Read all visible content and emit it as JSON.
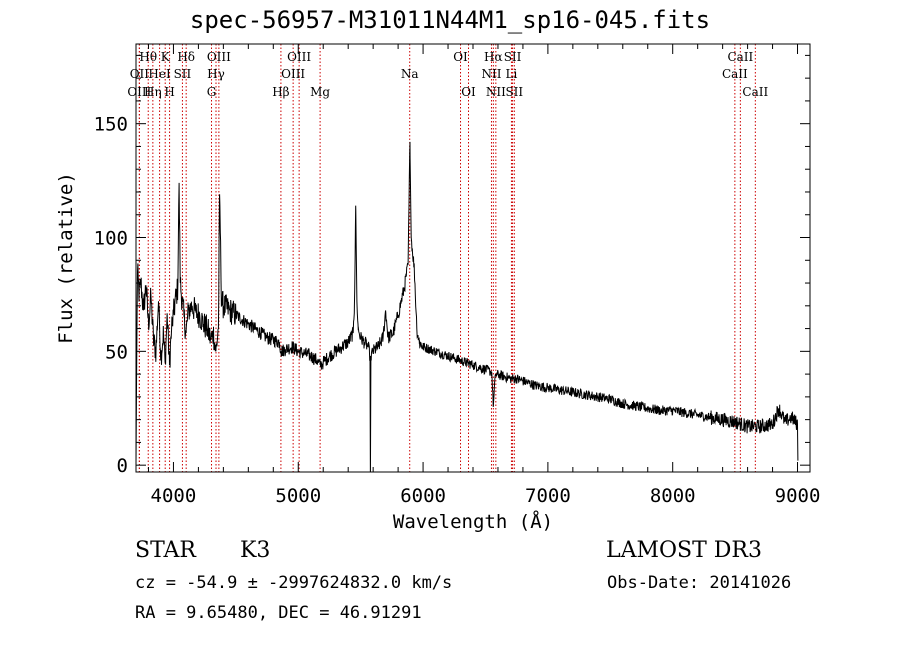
{
  "header": {
    "title": "spec-56957-M31011N44M1_sp16-045.fits"
  },
  "meta": {
    "class": "STAR",
    "subclass": "K3",
    "survey": "LAMOST DR3",
    "cz": "cz = -54.9 ± -2997624832.0 km/s",
    "obs_date": "Obs-Date: 20141026",
    "radec": "RA =   9.65480, DEC =  46.91291"
  },
  "chart_data": {
    "type": "line",
    "title": "spec-56957-M31011N44M1_sp16-045.fits",
    "xlabel": "Wavelength (Å)",
    "ylabel": "Flux (relative)",
    "xlim": [
      3700,
      9100
    ],
    "ylim": [
      -3,
      185
    ],
    "xticks": [
      4000,
      5000,
      6000,
      7000,
      8000,
      9000
    ],
    "yticks": [
      0,
      50,
      100,
      150
    ],
    "grid": false,
    "series": [
      {
        "name": "flux",
        "anchors": [
          [
            3700,
            0
          ],
          [
            3705,
            40
          ],
          [
            3712,
            85
          ],
          [
            3725,
            75
          ],
          [
            3740,
            80
          ],
          [
            3760,
            68
          ],
          [
            3780,
            79
          ],
          [
            3800,
            62
          ],
          [
            3820,
            74
          ],
          [
            3840,
            55
          ],
          [
            3860,
            50
          ],
          [
            3880,
            72
          ],
          [
            3900,
            48
          ],
          [
            3920,
            58
          ],
          [
            3933,
            45
          ],
          [
            3950,
            66
          ],
          [
            3968,
            44
          ],
          [
            3985,
            60
          ],
          [
            4000,
            66
          ],
          [
            4020,
            74
          ],
          [
            4035,
            78
          ],
          [
            4045,
            124
          ],
          [
            4055,
            80
          ],
          [
            4070,
            72
          ],
          [
            4085,
            65
          ],
          [
            4101,
            58
          ],
          [
            4120,
            68
          ],
          [
            4150,
            70
          ],
          [
            4180,
            67
          ],
          [
            4210,
            66
          ],
          [
            4240,
            62
          ],
          [
            4270,
            60
          ],
          [
            4300,
            55
          ],
          [
            4320,
            58
          ],
          [
            4340,
            50
          ],
          [
            4360,
            60
          ],
          [
            4370,
            119
          ],
          [
            4385,
            72
          ],
          [
            4400,
            70
          ],
          [
            4450,
            68
          ],
          [
            4500,
            66
          ],
          [
            4550,
            64
          ],
          [
            4600,
            62
          ],
          [
            4650,
            60
          ],
          [
            4700,
            58
          ],
          [
            4750,
            56
          ],
          [
            4800,
            55
          ],
          [
            4850,
            54
          ],
          [
            4861,
            50
          ],
          [
            4900,
            51
          ],
          [
            4950,
            52
          ],
          [
            5000,
            50
          ],
          [
            5050,
            49
          ],
          [
            5100,
            48
          ],
          [
            5150,
            46
          ],
          [
            5175,
            44
          ],
          [
            5200,
            45
          ],
          [
            5250,
            48
          ],
          [
            5300,
            50
          ],
          [
            5350,
            52
          ],
          [
            5400,
            54
          ],
          [
            5440,
            58
          ],
          [
            5450,
            70
          ],
          [
            5460,
            114
          ],
          [
            5470,
            72
          ],
          [
            5480,
            60
          ],
          [
            5500,
            56
          ],
          [
            5530,
            54
          ],
          [
            5560,
            52
          ],
          [
            5575,
            48
          ],
          [
            5578,
            -8
          ],
          [
            5582,
            48
          ],
          [
            5600,
            50
          ],
          [
            5640,
            52
          ],
          [
            5680,
            56
          ],
          [
            5700,
            68
          ],
          [
            5720,
            56
          ],
          [
            5760,
            58
          ],
          [
            5800,
            66
          ],
          [
            5850,
            78
          ],
          [
            5880,
            88
          ],
          [
            5895,
            142
          ],
          [
            5905,
            100
          ],
          [
            5930,
            86
          ],
          [
            5950,
            60
          ],
          [
            5970,
            54
          ],
          [
            6000,
            52
          ],
          [
            6050,
            51
          ],
          [
            6100,
            50
          ],
          [
            6150,
            49
          ],
          [
            6200,
            48
          ],
          [
            6250,
            47
          ],
          [
            6300,
            46
          ],
          [
            6350,
            45
          ],
          [
            6400,
            44
          ],
          [
            6450,
            43
          ],
          [
            6500,
            42
          ],
          [
            6550,
            41
          ],
          [
            6563,
            26
          ],
          [
            6580,
            40
          ],
          [
            6650,
            39
          ],
          [
            6700,
            38
          ],
          [
            6750,
            38
          ],
          [
            6800,
            37
          ],
          [
            6900,
            35
          ],
          [
            7000,
            34
          ],
          [
            7100,
            33
          ],
          [
            7200,
            32
          ],
          [
            7300,
            31
          ],
          [
            7400,
            30
          ],
          [
            7500,
            29
          ],
          [
            7600,
            27
          ],
          [
            7700,
            26
          ],
          [
            7800,
            25
          ],
          [
            7900,
            24
          ],
          [
            8000,
            24
          ],
          [
            8100,
            23
          ],
          [
            8200,
            22
          ],
          [
            8300,
            21
          ],
          [
            8400,
            20
          ],
          [
            8500,
            19
          ],
          [
            8600,
            17
          ],
          [
            8700,
            17
          ],
          [
            8800,
            18
          ],
          [
            8850,
            25
          ],
          [
            8900,
            19
          ],
          [
            8950,
            21
          ],
          [
            9000,
            18
          ],
          [
            9003,
            2
          ]
        ]
      }
    ],
    "lines": [
      {
        "label": "Hθ",
        "wavelength": 3798,
        "row": 0
      },
      {
        "label": "OII",
        "wavelength": 3727,
        "row": 1
      },
      {
        "label": "OIII",
        "wavelength": 3727,
        "row": 2
      },
      {
        "label": "K",
        "wavelength": 3934,
        "row": 0
      },
      {
        "label": "HeI",
        "wavelength": 3889,
        "row": 1
      },
      {
        "label": "Hη",
        "wavelength": 3835,
        "row": 2
      },
      {
        "label": "SII",
        "wavelength": 4072,
        "row": 1
      },
      {
        "label": "H",
        "wavelength": 3969,
        "row": 2
      },
      {
        "label": "Hδ",
        "wavelength": 4102,
        "row": 0
      },
      {
        "label": "OIII",
        "wavelength": 4364,
        "row": 0
      },
      {
        "label": "Hγ",
        "wavelength": 4341,
        "row": 1
      },
      {
        "label": "G",
        "wavelength": 4305,
        "row": 2
      },
      {
        "label": "Hβ",
        "wavelength": 4861,
        "row": 2
      },
      {
        "label": "OIII",
        "wavelength": 5007,
        "row": 0
      },
      {
        "label": "OIII",
        "wavelength": 4959,
        "row": 1
      },
      {
        "label": "Mg",
        "wavelength": 5175,
        "row": 2
      },
      {
        "label": "Na",
        "wavelength": 5893,
        "row": 1
      },
      {
        "label": "OI",
        "wavelength": 6300,
        "row": 0
      },
      {
        "label": "OI",
        "wavelength": 6364,
        "row": 2
      },
      {
        "label": "Hα",
        "wavelength": 6563,
        "row": 0
      },
      {
        "label": "NII",
        "wavelength": 6548,
        "row": 1
      },
      {
        "label": "NII",
        "wavelength": 6583,
        "row": 2
      },
      {
        "label": "SII",
        "wavelength": 6717,
        "row": 0
      },
      {
        "label": "Li",
        "wavelength": 6708,
        "row": 1
      },
      {
        "label": "SII",
        "wavelength": 6731,
        "row": 2
      },
      {
        "label": "CaII",
        "wavelength": 8542,
        "row": 0
      },
      {
        "label": "CaII",
        "wavelength": 8498,
        "row": 1
      },
      {
        "label": "CaII",
        "wavelength": 8662,
        "row": 2
      }
    ]
  }
}
